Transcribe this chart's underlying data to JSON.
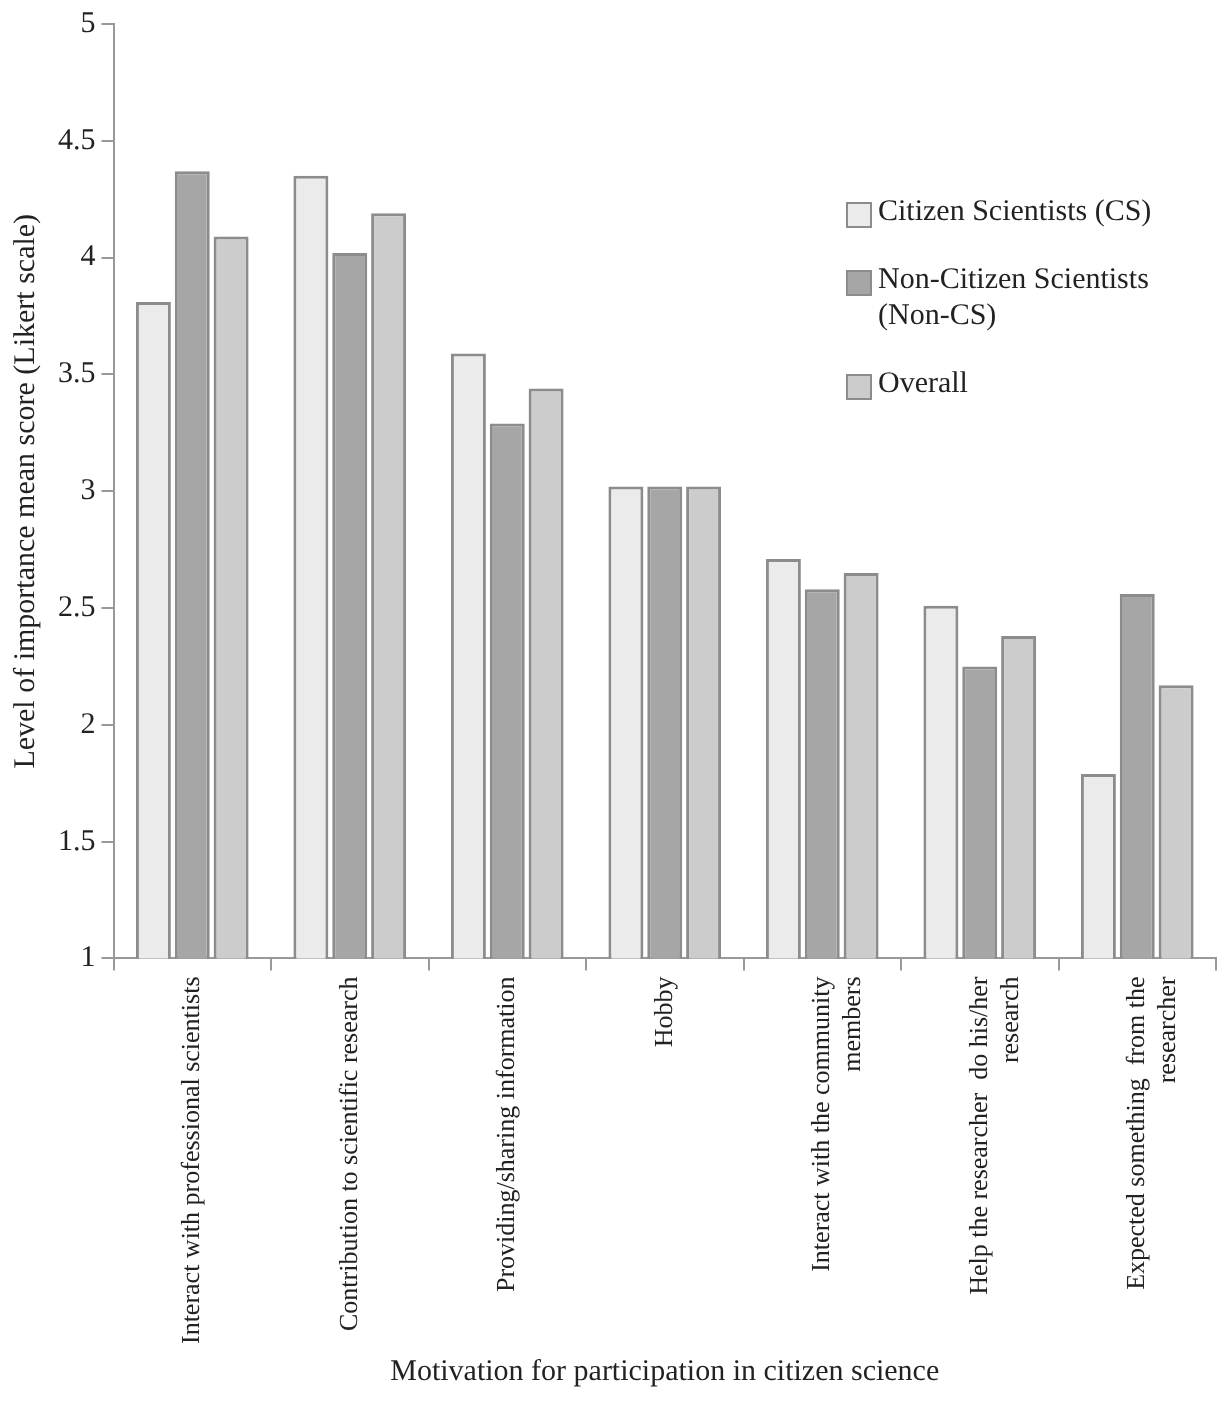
{
  "chart_data": {
    "type": "bar",
    "xlabel": "Motivation for participation in citizen science",
    "ylabel": "Level of importance mean score (Likert scale)",
    "categories": [
      "Interact with professional scientists",
      "Contribution to scientific research",
      "Providing/sharing information",
      "Hobby",
      "Interact with the community\nmembers",
      "Help the researcher  do his/her\nresearch",
      "Expected something  from the\nresearcher"
    ],
    "series": [
      {
        "name": "Citizen Scientists (CS)",
        "color": "#ebebeb",
        "values": [
          3.81,
          4.35,
          3.59,
          3.02,
          2.71,
          2.51,
          1.79
        ]
      },
      {
        "name": "Non-Citizen Scientists (Non-CS)",
        "color": "#a6a6a6",
        "values": [
          4.37,
          4.02,
          3.29,
          3.02,
          2.58,
          2.25,
          2.56
        ]
      },
      {
        "name": "Overall",
        "color": "#cccccc",
        "values": [
          4.09,
          4.19,
          3.44,
          3.02,
          2.65,
          2.38,
          2.17
        ]
      }
    ],
    "ylim": [
      1,
      5
    ],
    "yticks": [
      1,
      1.5,
      2,
      2.5,
      3,
      3.5,
      4,
      4.5,
      5
    ],
    "grid": false,
    "legend": "top right"
  }
}
